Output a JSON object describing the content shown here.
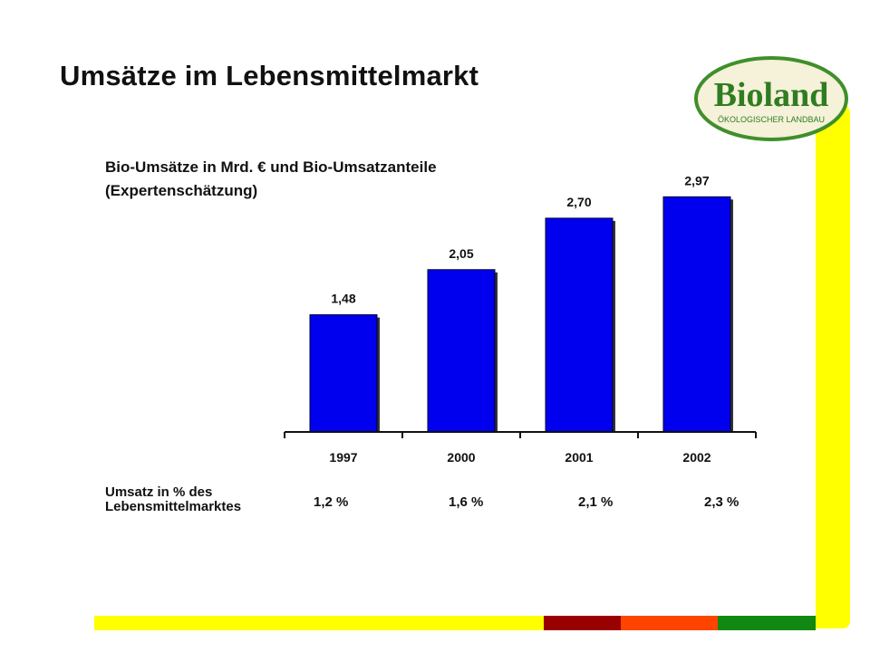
{
  "slide": {
    "title": "Umsätze im Lebensmittelmarkt",
    "subtitle_line1": "Bio-Umsätze in Mrd. € und Bio-Umsatzanteile",
    "subtitle_line2": "(Expertenschätzung)"
  },
  "logo": {
    "name": "Bioland",
    "tagline": "ÖKOLOGISCHER LANDBAU",
    "colors": {
      "ring": "#3f8f2a",
      "text": "#2f7d22",
      "fill": "#f6f1d9"
    }
  },
  "chart_data": {
    "type": "bar",
    "categories": [
      "1997",
      "2000",
      "2001",
      "2002"
    ],
    "values": [
      1.48,
      2.05,
      2.7,
      2.97
    ],
    "value_labels": [
      "1,48",
      "2,05",
      "2,70",
      "2,97"
    ],
    "ylim": [
      0,
      3.5
    ],
    "grid": false,
    "bar_color": "#0000ee",
    "bar_shadow_color": "#333333"
  },
  "market_share": {
    "label_line1": "Umsatz in % des",
    "label_line2": "Lebensmittelmarktes",
    "values": [
      "1,2 %",
      "1,6 %",
      "2,1 %",
      "2,3 %"
    ]
  },
  "decor": {
    "accent_yellow": "#ffff00",
    "bottom_stripes": [
      "#ffff00",
      "#990000",
      "#ff4400",
      "#118811"
    ]
  }
}
